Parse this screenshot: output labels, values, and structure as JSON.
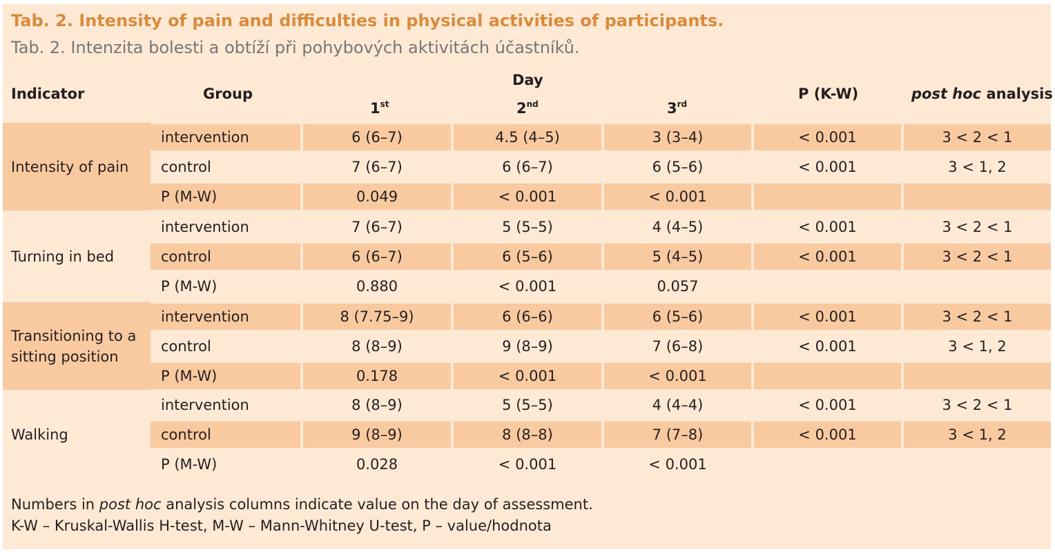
{
  "title": "Tab. 2. Intensity of pain and difficulties in physical activities of participants.",
  "subtitle": "Tab. 2. Intenzita bolesti a obtíží při pohybových aktivitách účastníků.",
  "headers": {
    "indicator": "Indicator",
    "group": "Group",
    "day": "Day",
    "day1": "1",
    "day1_sup": "st",
    "day2": "2",
    "day2_sup": "nd",
    "day3": "3",
    "day3_sup": "rd",
    "p_kw": "P (K-W)",
    "post_hoc_italic": "post hoc",
    "post_hoc_rest": " analysis"
  },
  "sections": [
    {
      "indicator": "Intensity of pain",
      "rows": [
        {
          "group": "intervention",
          "d1": "6 (6–7)",
          "d2": "4.5 (4–5)",
          "d3": "3 (3–4)",
          "pkw": "< 0.001",
          "posthoc": "3 < 2 < 1"
        },
        {
          "group": "control",
          "d1": "7 (6–7)",
          "d2": "6 (6–7)",
          "d3": "6 (5–6)",
          "pkw": "< 0.001",
          "posthoc": "3 < 1, 2"
        },
        {
          "group": "P (M-W)",
          "d1": "0.049",
          "d2": "< 0.001",
          "d3": "< 0.001",
          "pkw": "",
          "posthoc": ""
        }
      ]
    },
    {
      "indicator": "Turning in bed",
      "rows": [
        {
          "group": "intervention",
          "d1": "7 (6–7)",
          "d2": "5 (5–5)",
          "d3": "4 (4–5)",
          "pkw": "< 0.001",
          "posthoc": "3 < 2 < 1"
        },
        {
          "group": "control",
          "d1": "6 (6–7)",
          "d2": "6 (5–6)",
          "d3": "5 (4–5)",
          "pkw": "< 0.001",
          "posthoc": "3 < 2 < 1"
        },
        {
          "group": "P (M-W)",
          "d1": "0.880",
          "d2": "< 0.001",
          "d3": "0.057",
          "pkw": "",
          "posthoc": ""
        }
      ]
    },
    {
      "indicator": "Transitioning to a sitting position",
      "rows": [
        {
          "group": "intervention",
          "d1": "8 (7.75–9)",
          "d2": "6 (6–6)",
          "d3": "6 (5–6)",
          "pkw": "< 0.001",
          "posthoc": "3 < 2 < 1"
        },
        {
          "group": "control",
          "d1": "8 (8–9)",
          "d2": "9 (8–9)",
          "d3": "7 (6–8)",
          "pkw": "< 0.001",
          "posthoc": "3 < 1, 2"
        },
        {
          "group": "P (M-W)",
          "d1": "0.178",
          "d2": "< 0.001",
          "d3": "< 0.001",
          "pkw": "",
          "posthoc": ""
        }
      ]
    },
    {
      "indicator": "Walking",
      "rows": [
        {
          "group": "intervention",
          "d1": "8 (8–9)",
          "d2": "5 (5–5)",
          "d3": "4 (4–4)",
          "pkw": "< 0.001",
          "posthoc": "3 < 2 < 1"
        },
        {
          "group": "control",
          "d1": "9 (8–9)",
          "d2": "8 (8–8)",
          "d3": "7 (7–8)",
          "pkw": "< 0.001",
          "posthoc": "3 < 1, 2"
        },
        {
          "group": "P (M-W)",
          "d1": "0.028",
          "d2": "< 0.001",
          "d3": "< 0.001",
          "pkw": "",
          "posthoc": ""
        }
      ]
    }
  ],
  "notes": {
    "line1_pre": "Numbers in ",
    "line1_italic": "post hoc",
    "line1_post": " analysis columns indicate value on the day of assessment.",
    "line2": "K-W – Kruskal-Wallis H-test, M-W – Mann-Whitney U-test, P – value/hodnota"
  },
  "colors": {
    "background": "#fde9d4",
    "shade": "#f9c9a0",
    "title": "#d98b3c",
    "subtitle": "#777777"
  }
}
